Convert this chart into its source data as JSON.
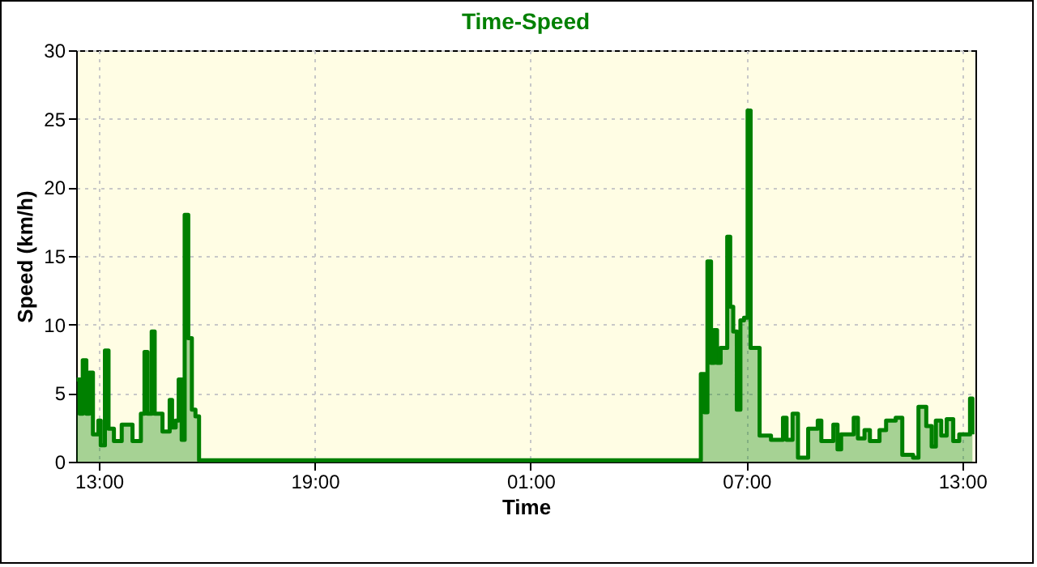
{
  "chart_data": {
    "type": "step",
    "title": "Time-Speed",
    "xlabel": "Time",
    "ylabel": "Speed (km/h)",
    "grid": true,
    "xlim": [
      "--01-01T12:22",
      "--01-02T13:22"
    ],
    "xticks": [
      {
        "value": "--01-01T13:00",
        "label": "13:00"
      },
      {
        "value": "--01-01T19:00",
        "label": "19:00"
      },
      {
        "value": "--01-02T01:00",
        "label": "01:00"
      },
      {
        "value": "--01-02T07:00",
        "label": "07:00"
      },
      {
        "value": "--01-02T13:00",
        "label": "13:00"
      }
    ],
    "ylim": [
      0,
      30
    ],
    "yticks": [
      0,
      5,
      10,
      15,
      20,
      25,
      30
    ],
    "series": [
      {
        "color": "#008000",
        "x": [
          "--01-01T12:23",
          "--01-01T12:28",
          "--01-01T12:33",
          "--01-01T12:39",
          "--01-01T12:44",
          "--01-01T12:50",
          "--01-01T12:59",
          "--01-01T13:03",
          "--01-01T13:10",
          "--01-01T13:16",
          "--01-01T13:25",
          "--01-01T13:38",
          "--01-01T13:56",
          "--01-01T14:10",
          "--01-01T14:16",
          "--01-01T14:21",
          "--01-01T14:28",
          "--01-01T14:33",
          "--01-01T14:46",
          "--01-01T14:58",
          "--01-01T15:02",
          "--01-01T15:08",
          "--01-01T15:13",
          "--01-01T15:18",
          "--01-01T15:23",
          "--01-01T15:29",
          "--01-01T15:35",
          "--01-01T15:41",
          "--01-01T15:47",
          "--01-02T05:44",
          "--01-02T05:50",
          "--01-02T05:55",
          "--01-02T06:01",
          "--01-02T06:06",
          "--01-02T06:11",
          "--01-02T06:17",
          "--01-02T06:28",
          "--01-02T06:33",
          "--01-02T06:38",
          "--01-02T06:44",
          "--01-02T06:50",
          "--01-02T06:56",
          "--01-02T07:02",
          "--01-02T07:07",
          "--01-02T07:22",
          "--01-02T07:41",
          "--01-02T08:01",
          "--01-02T08:07",
          "--01-02T08:17",
          "--01-02T08:26",
          "--01-02T08:43",
          "--01-02T08:59",
          "--01-02T09:05",
          "--01-02T09:25",
          "--01-02T09:32",
          "--01-02T09:38",
          "--01-02T09:59",
          "--01-02T10:06",
          "--01-02T10:17",
          "--01-02T10:26",
          "--01-02T10:42",
          "--01-02T10:53",
          "--01-02T11:09",
          "--01-02T11:20",
          "--01-02T11:38",
          "--01-02T11:47",
          "--01-02T12:00",
          "--01-02T12:09",
          "--01-02T12:16",
          "--01-02T12:25",
          "--01-02T12:34",
          "--01-02T12:45",
          "--01-02T12:55",
          "--01-02T13:13",
          "--01-02T13:17"
        ],
        "values": [
          6,
          3.5,
          7.4,
          3.5,
          6.5,
          2,
          3,
          1.2,
          8.1,
          2.4,
          1.5,
          2.7,
          1.5,
          3.5,
          8,
          3.5,
          9.5,
          3.5,
          2.2,
          4.5,
          2.5,
          3,
          6,
          1.6,
          18,
          9,
          3.8,
          3.3,
          0.1,
          6.4,
          3.6,
          14.6,
          7.2,
          9.6,
          7.2,
          8.3,
          16.4,
          11.3,
          9.5,
          3.8,
          10.3,
          10.5,
          25.6,
          8.3,
          1.9,
          1.6,
          3.2,
          1.6,
          3.5,
          0.3,
          2.4,
          3,
          1.5,
          2.7,
          0.9,
          2,
          3.2,
          1.7,
          2.3,
          1.5,
          2.3,
          3,
          3.2,
          0.5,
          0.3,
          4,
          2.6,
          1.1,
          3,
          1.9,
          3.1,
          1.5,
          2,
          4.6,
          2
        ]
      }
    ]
  }
}
